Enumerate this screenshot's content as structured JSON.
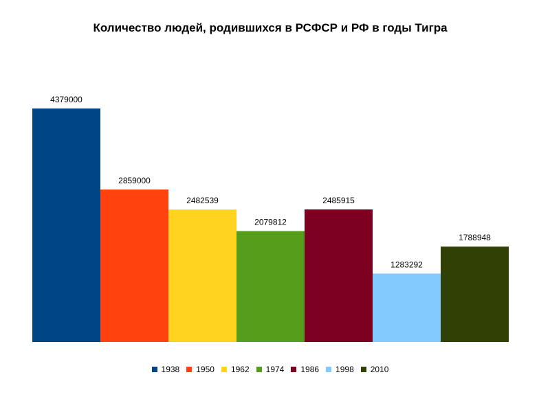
{
  "chart_data": {
    "type": "bar",
    "title": "Количество людей, родившихся в РСФСР и РФ в годы Тигра",
    "xlabel": "",
    "ylabel": "",
    "ylim": [
      0,
      4600000
    ],
    "grid": false,
    "legend_position": "bottom",
    "series": [
      {
        "name": "1938",
        "value": 4379000,
        "label": "4379000",
        "color": "#004586"
      },
      {
        "name": "1950",
        "value": 2859000,
        "label": "2859000",
        "color": "#ff420e"
      },
      {
        "name": "1962",
        "value": 2482539,
        "label": "2482539",
        "color": "#ffd320"
      },
      {
        "name": "1974",
        "value": 2079812,
        "label": "2079812",
        "color": "#579d1c"
      },
      {
        "name": "1986",
        "value": 2485915,
        "label": "2485915",
        "color": "#7e0021"
      },
      {
        "name": "1998",
        "value": 1283292,
        "label": "1283292",
        "color": "#83caff"
      },
      {
        "name": "2010",
        "value": 1788948,
        "label": "1788948",
        "color": "#314004"
      }
    ]
  }
}
